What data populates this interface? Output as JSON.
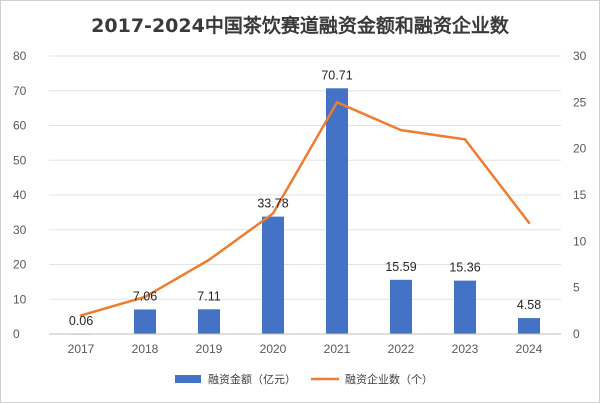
{
  "chart_data": {
    "type": "bar",
    "title": "2017-2024中国茶饮赛道融资金额和融资企业数",
    "categories": [
      "2017",
      "2018",
      "2019",
      "2020",
      "2021",
      "2022",
      "2023",
      "2024"
    ],
    "series": [
      {
        "name": "融资金额（亿元）",
        "type": "bar",
        "axis": "left",
        "color": "#4472C4",
        "values": [
          0.06,
          7.06,
          7.11,
          33.78,
          70.71,
          15.59,
          15.36,
          4.58
        ],
        "labels": [
          "0.06",
          "7.06",
          "7.11",
          "33.78",
          "70.71",
          "15.59",
          "15.36",
          "4.58"
        ]
      },
      {
        "name": "融资企业数（个）",
        "type": "line",
        "axis": "right",
        "color": "#ED7D31",
        "values": [
          2,
          4,
          8,
          13,
          25,
          22,
          21,
          12
        ]
      }
    ],
    "y_left": {
      "min": 0,
      "max": 80,
      "ticks": [
        "0",
        "10",
        "20",
        "30",
        "40",
        "50",
        "60",
        "70",
        "80"
      ]
    },
    "y_right": {
      "min": 0,
      "max": 30,
      "ticks": [
        "0",
        "5",
        "10",
        "15",
        "20",
        "25",
        "30"
      ]
    },
    "grid": true,
    "legend_position": "bottom"
  }
}
